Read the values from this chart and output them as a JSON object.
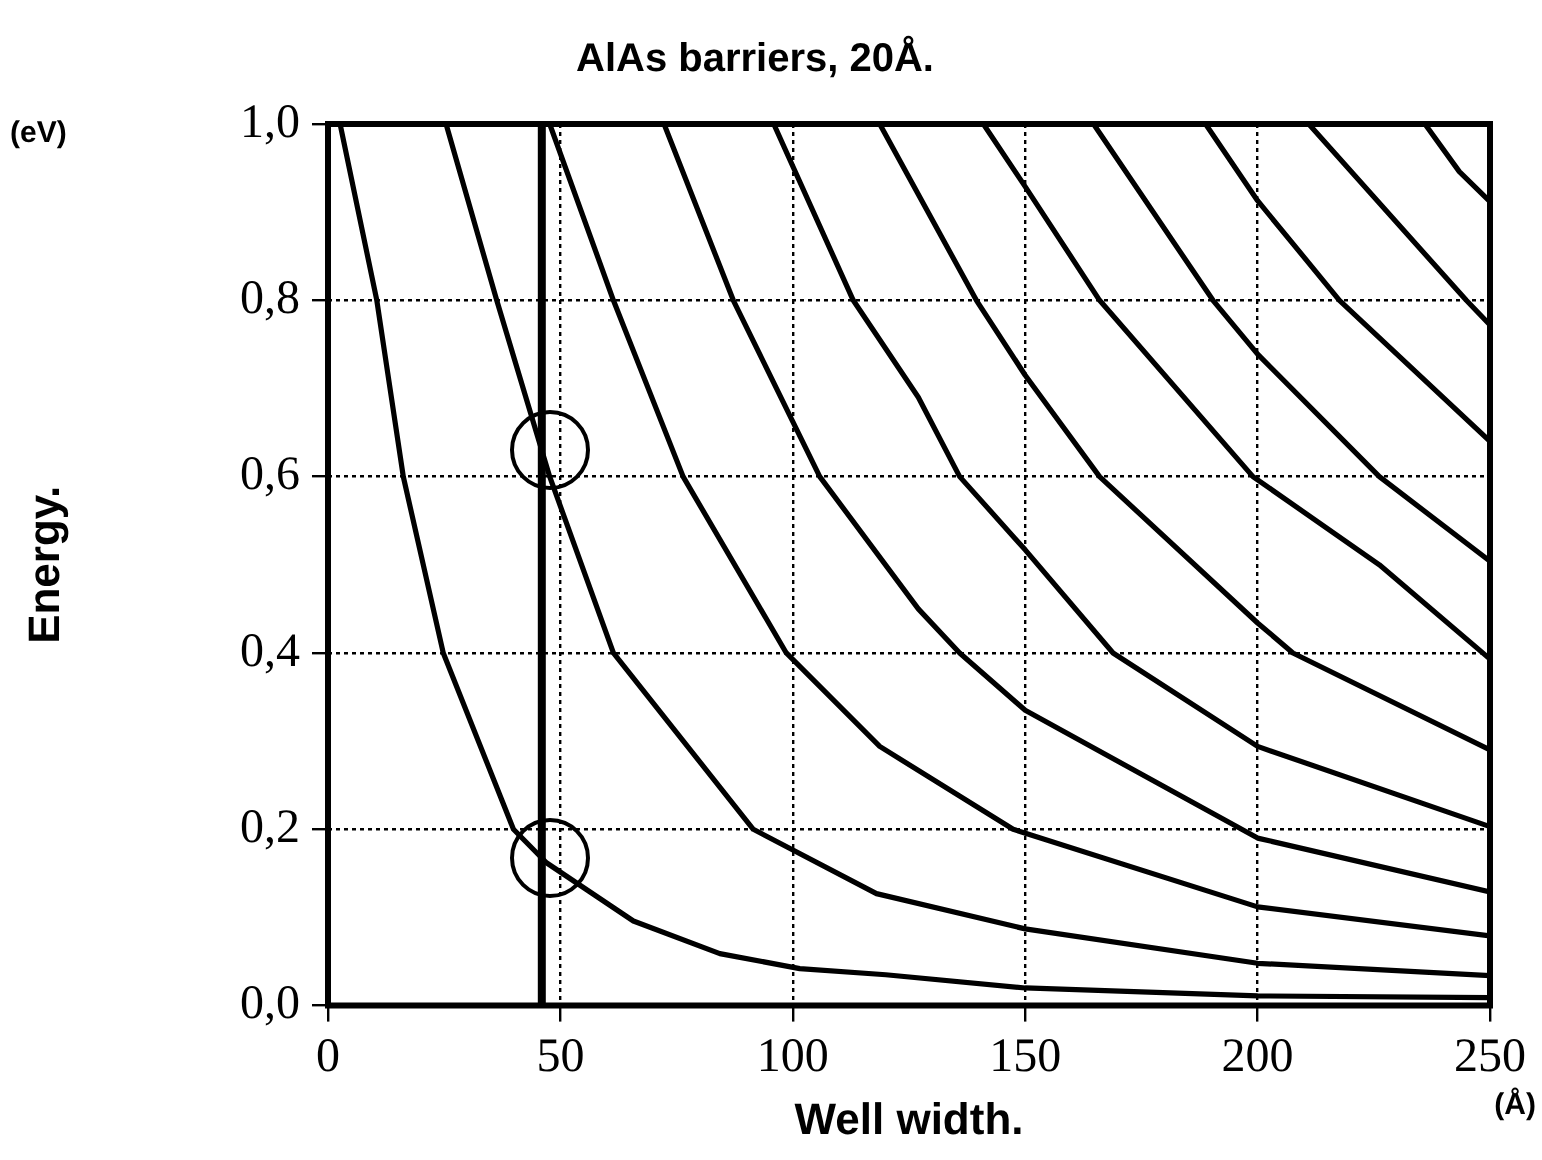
{
  "chart_data": {
    "type": "line",
    "title": "AlAs barriers, 20Å.",
    "xlabel": "Well width.",
    "ylabel": "Energy.",
    "annotations": [
      "(eV)",
      "(Å)"
    ],
    "xlim": [
      0,
      250
    ],
    "xticks": [
      0,
      50,
      100,
      150,
      200,
      250
    ],
    "ylim": [
      0,
      1
    ],
    "yticks": [
      {
        "value": 0,
        "label": "0,0"
      },
      {
        "value": 0.2,
        "label": "0,2"
      },
      {
        "value": 0.4,
        "label": "0,4"
      },
      {
        "value": 0.6,
        "label": "0,6"
      },
      {
        "value": 0.8,
        "label": "0,8"
      },
      {
        "value": 1,
        "label": "1,0"
      }
    ],
    "grid": true,
    "legend": false,
    "marker": "none",
    "line_style": "solid",
    "ref_lines": [
      {
        "axis": "x",
        "value": 46,
        "color": "#000000"
      }
    ],
    "series": [
      {
        "color": "#000000",
        "x": [
          2.6,
          10.5,
          16.2,
          24.8,
          39.9,
          47,
          65.7,
          84.3,
          101.5,
          120,
          150,
          200,
          250
        ],
        "values": [
          1,
          0.8,
          0.6,
          0.4,
          0.2,
          0.162,
          0.096,
          0.059,
          0.042,
          0.035,
          0.02,
          0.011,
          0.009
        ]
      },
      {
        "color": "#000000",
        "x": [
          25.4,
          36.3,
          47.7,
          61.4,
          91.5,
          118,
          150,
          200,
          250
        ],
        "values": [
          1,
          0.8,
          0.6,
          0.4,
          0.2,
          0.127,
          0.087,
          0.048,
          0.034
        ]
      },
      {
        "color": "#000000",
        "x": [
          47.7,
          61.4,
          76.4,
          98.6,
          118.7,
          147.4,
          200,
          250
        ],
        "values": [
          1,
          0.8,
          0.6,
          0.4,
          0.294,
          0.2,
          0.112,
          0.079
        ]
      },
      {
        "color": "#000000",
        "x": [
          72.3,
          87.2,
          105.8,
          127,
          135.9,
          150,
          200,
          250
        ],
        "values": [
          1,
          0.8,
          0.6,
          0.45,
          0.4,
          0.335,
          0.19,
          0.129
        ]
      },
      {
        "color": "#000000",
        "x": [
          95.9,
          113,
          127,
          135.9,
          150,
          168.9,
          200,
          250
        ],
        "values": [
          1,
          0.8,
          0.69,
          0.6,
          0.517,
          0.4,
          0.294,
          0.203
        ]
      },
      {
        "color": "#000000",
        "x": [
          118.7,
          139.5,
          150,
          166,
          200,
          207.6,
          250
        ],
        "values": [
          1,
          0.8,
          0.715,
          0.6,
          0.434,
          0.4,
          0.29
        ]
      },
      {
        "color": "#000000",
        "x": [
          141,
          150,
          166,
          199,
          226.2,
          250
        ],
        "values": [
          1,
          0.929,
          0.8,
          0.6,
          0.5,
          0.393
        ]
      },
      {
        "color": "#000000",
        "x": [
          164.7,
          190.4,
          200,
          226.2,
          250
        ],
        "values": [
          1,
          0.8,
          0.739,
          0.6,
          0.504
        ]
      },
      {
        "color": "#000000",
        "x": [
          188.8,
          200,
          217.6,
          250
        ],
        "values": [
          1,
          0.913,
          0.8,
          0.64
        ]
      },
      {
        "color": "#000000",
        "x": [
          211,
          244.9,
          250
        ],
        "values": [
          1,
          0.8,
          0.772
        ]
      },
      {
        "color": "#000000",
        "x": [
          236,
          243.4,
          250
        ],
        "values": [
          1,
          0.946,
          0.912
        ]
      }
    ]
  }
}
